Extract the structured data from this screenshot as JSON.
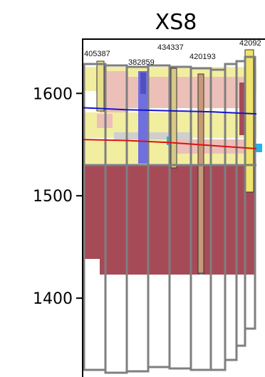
{
  "chart_data": {
    "type": "cross-section",
    "title": "XS8",
    "xlabel": "",
    "ylabel": "",
    "ylim": [
      1323,
      1653
    ],
    "y_ticks": [
      1600,
      1500,
      1400
    ],
    "y_tick_labels": [
      "1600",
      "1500",
      "1400"
    ],
    "grid": false,
    "well_labels": [
      "405387",
      "382859",
      "434337",
      "420193",
      "42092"
    ],
    "series": [
      {
        "color": "#1515cc",
        "points": [
          [
            0,
            1586
          ],
          [
            0.25,
            1584
          ],
          [
            0.5,
            1583
          ],
          [
            0.75,
            1582
          ],
          [
            1,
            1580
          ]
        ]
      },
      {
        "color": "#dd1111",
        "points": [
          [
            0,
            1555
          ],
          [
            0.25,
            1554
          ],
          [
            0.5,
            1552
          ],
          [
            0.75,
            1549
          ],
          [
            1,
            1546
          ]
        ]
      }
    ],
    "bands": [
      {
        "color": "#f2eea0",
        "top": 1620,
        "bottom": 1592
      },
      {
        "color": "#ecc0b8",
        "top": 1606,
        "bottom": 1568
      },
      {
        "color": "#f2eea0",
        "top": 1568,
        "bottom": 1530
      },
      {
        "color": "#ecc0b8",
        "top": 1576,
        "bottom": 1560
      },
      {
        "color": "#a64a58",
        "top": 1524,
        "bottom": 1418
      }
    ],
    "colors": {
      "shale": "#a64a58",
      "sand": "#f2eea0",
      "pink": "#ecc0b8",
      "blue_sand": "#6f6fe0",
      "water": "#22b4e8",
      "well_outline": "#7f7f7f"
    }
  }
}
